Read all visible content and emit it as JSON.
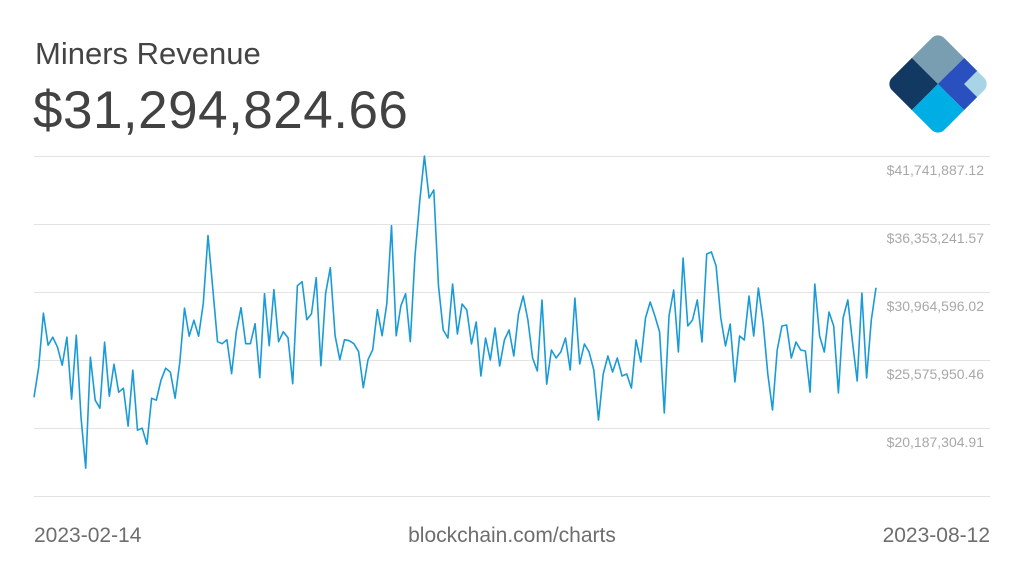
{
  "header": {
    "title": "Miners Revenue",
    "current_value": "$31,294,824.66"
  },
  "logo": {
    "name": "blockchain-logo",
    "colors": [
      "#123962",
      "#799eb2",
      "#2950be",
      "#a8d4e6",
      "#00aee6"
    ]
  },
  "footer": {
    "start_date": "2023-02-14",
    "source": "blockchain.com/charts",
    "end_date": "2023-08-12"
  },
  "colors": {
    "line": "#1a9bd7",
    "grid": "#e3e3e3",
    "axis_label": "#a8a8a8"
  },
  "chart_data": {
    "type": "line",
    "title": "Miners Revenue",
    "xlabel": "",
    "ylabel": "USD",
    "x_start": "2023-02-14",
    "x_end": "2023-08-12",
    "y_tick_labels": [
      "$41,741,887.12",
      "$36,353,241.57",
      "$30,964,596.02",
      "$25,575,950.46",
      "$20,187,304.91"
    ],
    "y_ticks": [
      41741887.12,
      36353241.57,
      30964596.02,
      25575950.46,
      20187304.91
    ],
    "ylim": [
      14798659.36,
      41741887.12
    ],
    "grid": true,
    "legend": "none",
    "series": [
      {
        "name": "Miners Revenue (USD)",
        "values": [
          22627000,
          25004000,
          29283000,
          26747000,
          27381000,
          26588000,
          25162000,
          27381000,
          22469000,
          27540000,
          21042000,
          17000000,
          25796000,
          22389000,
          21755000,
          26985000,
          22706000,
          25242000,
          23023000,
          23340000,
          20329000,
          24766000,
          20011000,
          20170000,
          18902000,
          22548000,
          22389000,
          23974000,
          24925000,
          24608000,
          22548000,
          25401000,
          29680000,
          27461000,
          28729000,
          27461000,
          30076000,
          35444000,
          31314000,
          27034000,
          26866000,
          27183000,
          24489000,
          27817000,
          29718000,
          26866000,
          26866000,
          28452000,
          24172000,
          30828000,
          26707000,
          31145000,
          27025000,
          27817000,
          27342000,
          23697000,
          31462000,
          31779000,
          28768000,
          29243000,
          32096000,
          25123000,
          30828000,
          32889000,
          27500000,
          25598000,
          27183000,
          27104000,
          26866000,
          26232000,
          23380000,
          25598000,
          26390000,
          29560000,
          27500000,
          30036000,
          36217000,
          27500000,
          29877000,
          30828000,
          27025000,
          33840000,
          38119000,
          41741887,
          38413000,
          39045000,
          31437000,
          27951000,
          27317000,
          31597000,
          27634000,
          30011000,
          29535000,
          26841000,
          28584000,
          24305000,
          27317000,
          25573000,
          28109000,
          25098000,
          27158000,
          27951000,
          25891000,
          29218000,
          30645000,
          28743000,
          25732000,
          24701000,
          30328000,
          23670000,
          26365000,
          25732000,
          26207000,
          27317000,
          24780000,
          30486000,
          25256000,
          26841000,
          26207000,
          24780000,
          20818000,
          24463000,
          25890000,
          24622000,
          25732000,
          24305000,
          24463000,
          23353000,
          27158000,
          25415000,
          28902000,
          30170000,
          29060000,
          27792000,
          21373000,
          29060000,
          31121000,
          26207000,
          33657000,
          28268000,
          28743000,
          30328000,
          27000000,
          33974000,
          34132000,
          33023000,
          28902000,
          26682000,
          28426000,
          23829000,
          27475000,
          27158000,
          30645000,
          27475000,
          31279000,
          28585000,
          24463000,
          21610000,
          26365000,
          28268000,
          28347000,
          25732000,
          26999000,
          26365000,
          26286000,
          23036000,
          31596000,
          27475000,
          26207000,
          29377000,
          28268000,
          22957000,
          28902000,
          30328000,
          27000000,
          23909000,
          30883000,
          24146000,
          28743000,
          31294825
        ]
      }
    ]
  }
}
